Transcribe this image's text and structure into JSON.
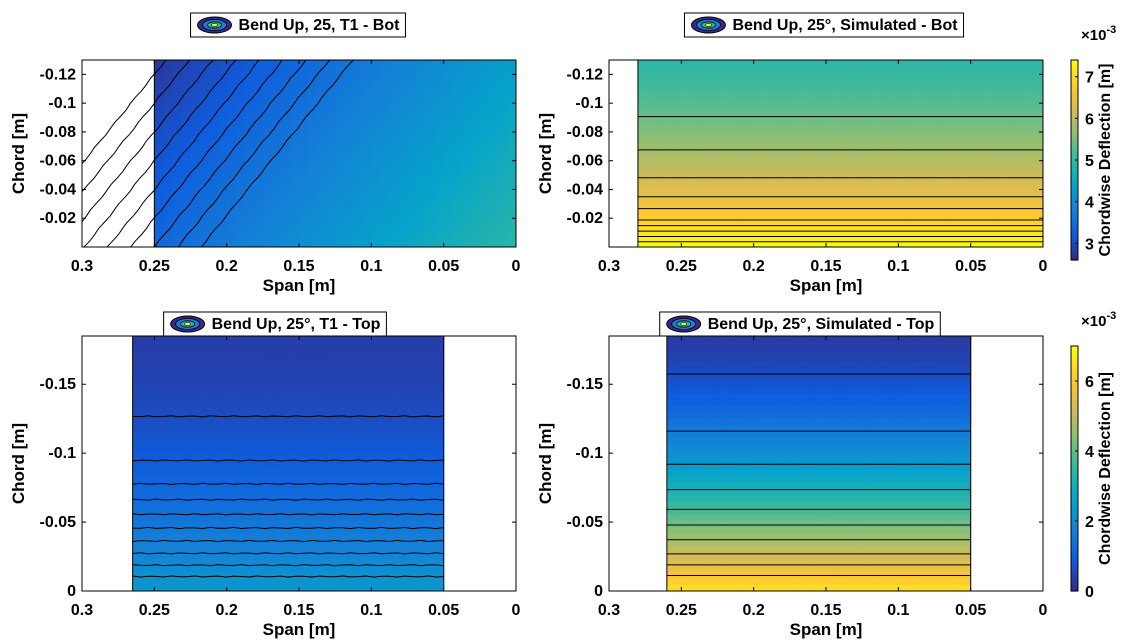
{
  "chart_data": [
    {
      "type": "heatmap",
      "title": "Bend Up, 25, T1 - Bot",
      "xlabel": "Span [m]",
      "ylabel": "Chord [m]",
      "xlim": [
        0.3,
        0
      ],
      "ylim": [
        0,
        -0.13
      ],
      "x_reversed": true,
      "y_reversed": true,
      "xticks": [
        0.3,
        0.25,
        0.2,
        0.15,
        0.1,
        0.05,
        0
      ],
      "xtick_labels": [
        "0.3",
        "0.25",
        "0.2",
        "0.15",
        "0.1",
        "0.05",
        "0"
      ],
      "yticks": [
        -0.12,
        -0.1,
        -0.08,
        -0.06,
        -0.04,
        -0.02
      ],
      "ytick_labels": [
        "-0.12",
        "-0.1",
        "-0.08",
        "-0.06",
        "-0.04",
        "-0.02"
      ],
      "data_extent": {
        "span": [
          0.25,
          0
        ],
        "chord": [
          0,
          -0.13
        ]
      },
      "field": "diagonal",
      "contour_levels": [
        2.8,
        2.9,
        3.0,
        3.1,
        3.2,
        3.3,
        3.4,
        3.5,
        3.6
      ],
      "colorbar": null
    },
    {
      "type": "heatmap",
      "title": "Bend Up, 25°, Simulated - Bot",
      "xlabel": "Span [m]",
      "ylabel": "Chord [m]",
      "xlim": [
        0.3,
        0
      ],
      "ylim": [
        0,
        -0.13
      ],
      "x_reversed": true,
      "y_reversed": true,
      "xticks": [
        0.3,
        0.25,
        0.2,
        0.15,
        0.1,
        0.05,
        0
      ],
      "xtick_labels": [
        "0.3",
        "0.25",
        "0.2",
        "0.15",
        "0.1",
        "0.05",
        "0"
      ],
      "yticks": [
        -0.12,
        -0.1,
        -0.08,
        -0.06,
        -0.04,
        -0.02
      ],
      "ytick_labels": [
        "-0.12",
        "-0.1",
        "-0.08",
        "-0.06",
        "-0.04",
        "-0.02"
      ],
      "data_extent": {
        "span": [
          0.28,
          0
        ],
        "chord": [
          0,
          -0.13
        ]
      },
      "field": "chordwise",
      "contour_levels": [
        5.4,
        5.8,
        6.2,
        6.5,
        6.7,
        6.9,
        7.0,
        7.1,
        7.2,
        7.3
      ],
      "colorbar": {
        "label": "Chordwise Deflection [m]",
        "exponent": "×10",
        "exponent_power": "-3",
        "range": [
          2.6,
          7.4
        ],
        "ticks": [
          3,
          4,
          5,
          6,
          7
        ],
        "tick_labels": [
          "3",
          "4",
          "5",
          "6",
          "7"
        ]
      }
    },
    {
      "type": "heatmap",
      "title": "Bend Up, 25°, T1 - Top",
      "xlabel": "Span [m]",
      "ylabel": "Chord [m]",
      "xlim": [
        0.3,
        0
      ],
      "ylim": [
        0,
        -0.185
      ],
      "x_reversed": true,
      "y_reversed": true,
      "xticks": [
        0.3,
        0.25,
        0.2,
        0.15,
        0.1,
        0.05,
        0
      ],
      "xtick_labels": [
        "0.3",
        "0.25",
        "0.2",
        "0.15",
        "0.1",
        "0.05",
        "0"
      ],
      "yticks": [
        0,
        -0.05,
        -0.1,
        -0.15
      ],
      "ytick_labels": [
        "0",
        "-0.05",
        "-0.1",
        "-0.15"
      ],
      "data_extent": {
        "span": [
          0.265,
          0.05
        ],
        "chord": [
          0,
          -0.185
        ]
      },
      "field": "chordwise",
      "contour_levels": [
        0.6,
        0.9,
        1.1,
        1.25,
        1.4,
        1.55,
        1.7,
        1.85,
        2.0,
        2.15
      ],
      "colorbar": null
    },
    {
      "type": "heatmap",
      "title": "Bend Up, 25°, Simulated - Top",
      "xlabel": "Span [m]",
      "ylabel": "Chord [m]",
      "xlim": [
        0.3,
        0
      ],
      "ylim": [
        0,
        -0.185
      ],
      "x_reversed": true,
      "y_reversed": true,
      "xticks": [
        0.3,
        0.25,
        0.2,
        0.15,
        0.1,
        0.05,
        0
      ],
      "xtick_labels": [
        "0.3",
        "0.25",
        "0.2",
        "0.15",
        "0.1",
        "0.05",
        "0"
      ],
      "yticks": [
        0,
        -0.05,
        -0.1,
        -0.15
      ],
      "ytick_labels": [
        "0",
        "-0.05",
        "-0.1",
        "-0.15"
      ],
      "data_extent": {
        "span": [
          0.26,
          0.05
        ],
        "chord": [
          0,
          -0.185
        ]
      },
      "field": "chordwise",
      "contour_levels": [
        0.6,
        1.6,
        2.4,
        3.1,
        3.7,
        4.2,
        4.7,
        5.2,
        5.6,
        6.0
      ],
      "colorbar": {
        "label": "Chordwise Deflection [m]",
        "exponent": "×10",
        "exponent_power": "-3",
        "range": [
          0,
          7
        ],
        "ticks": [
          0,
          2,
          4,
          6
        ],
        "tick_labels": [
          "0",
          "2",
          "4",
          "6"
        ]
      }
    }
  ],
  "colors": {
    "colormap": [
      "#352a87",
      "#0f5cdd",
      "#1481d6",
      "#06a4ca",
      "#2eb7a4",
      "#87bf77",
      "#d1bb59",
      "#fec832",
      "#f9fb0e"
    ],
    "contour_line": "#000000",
    "axes_frame": "#000000"
  }
}
